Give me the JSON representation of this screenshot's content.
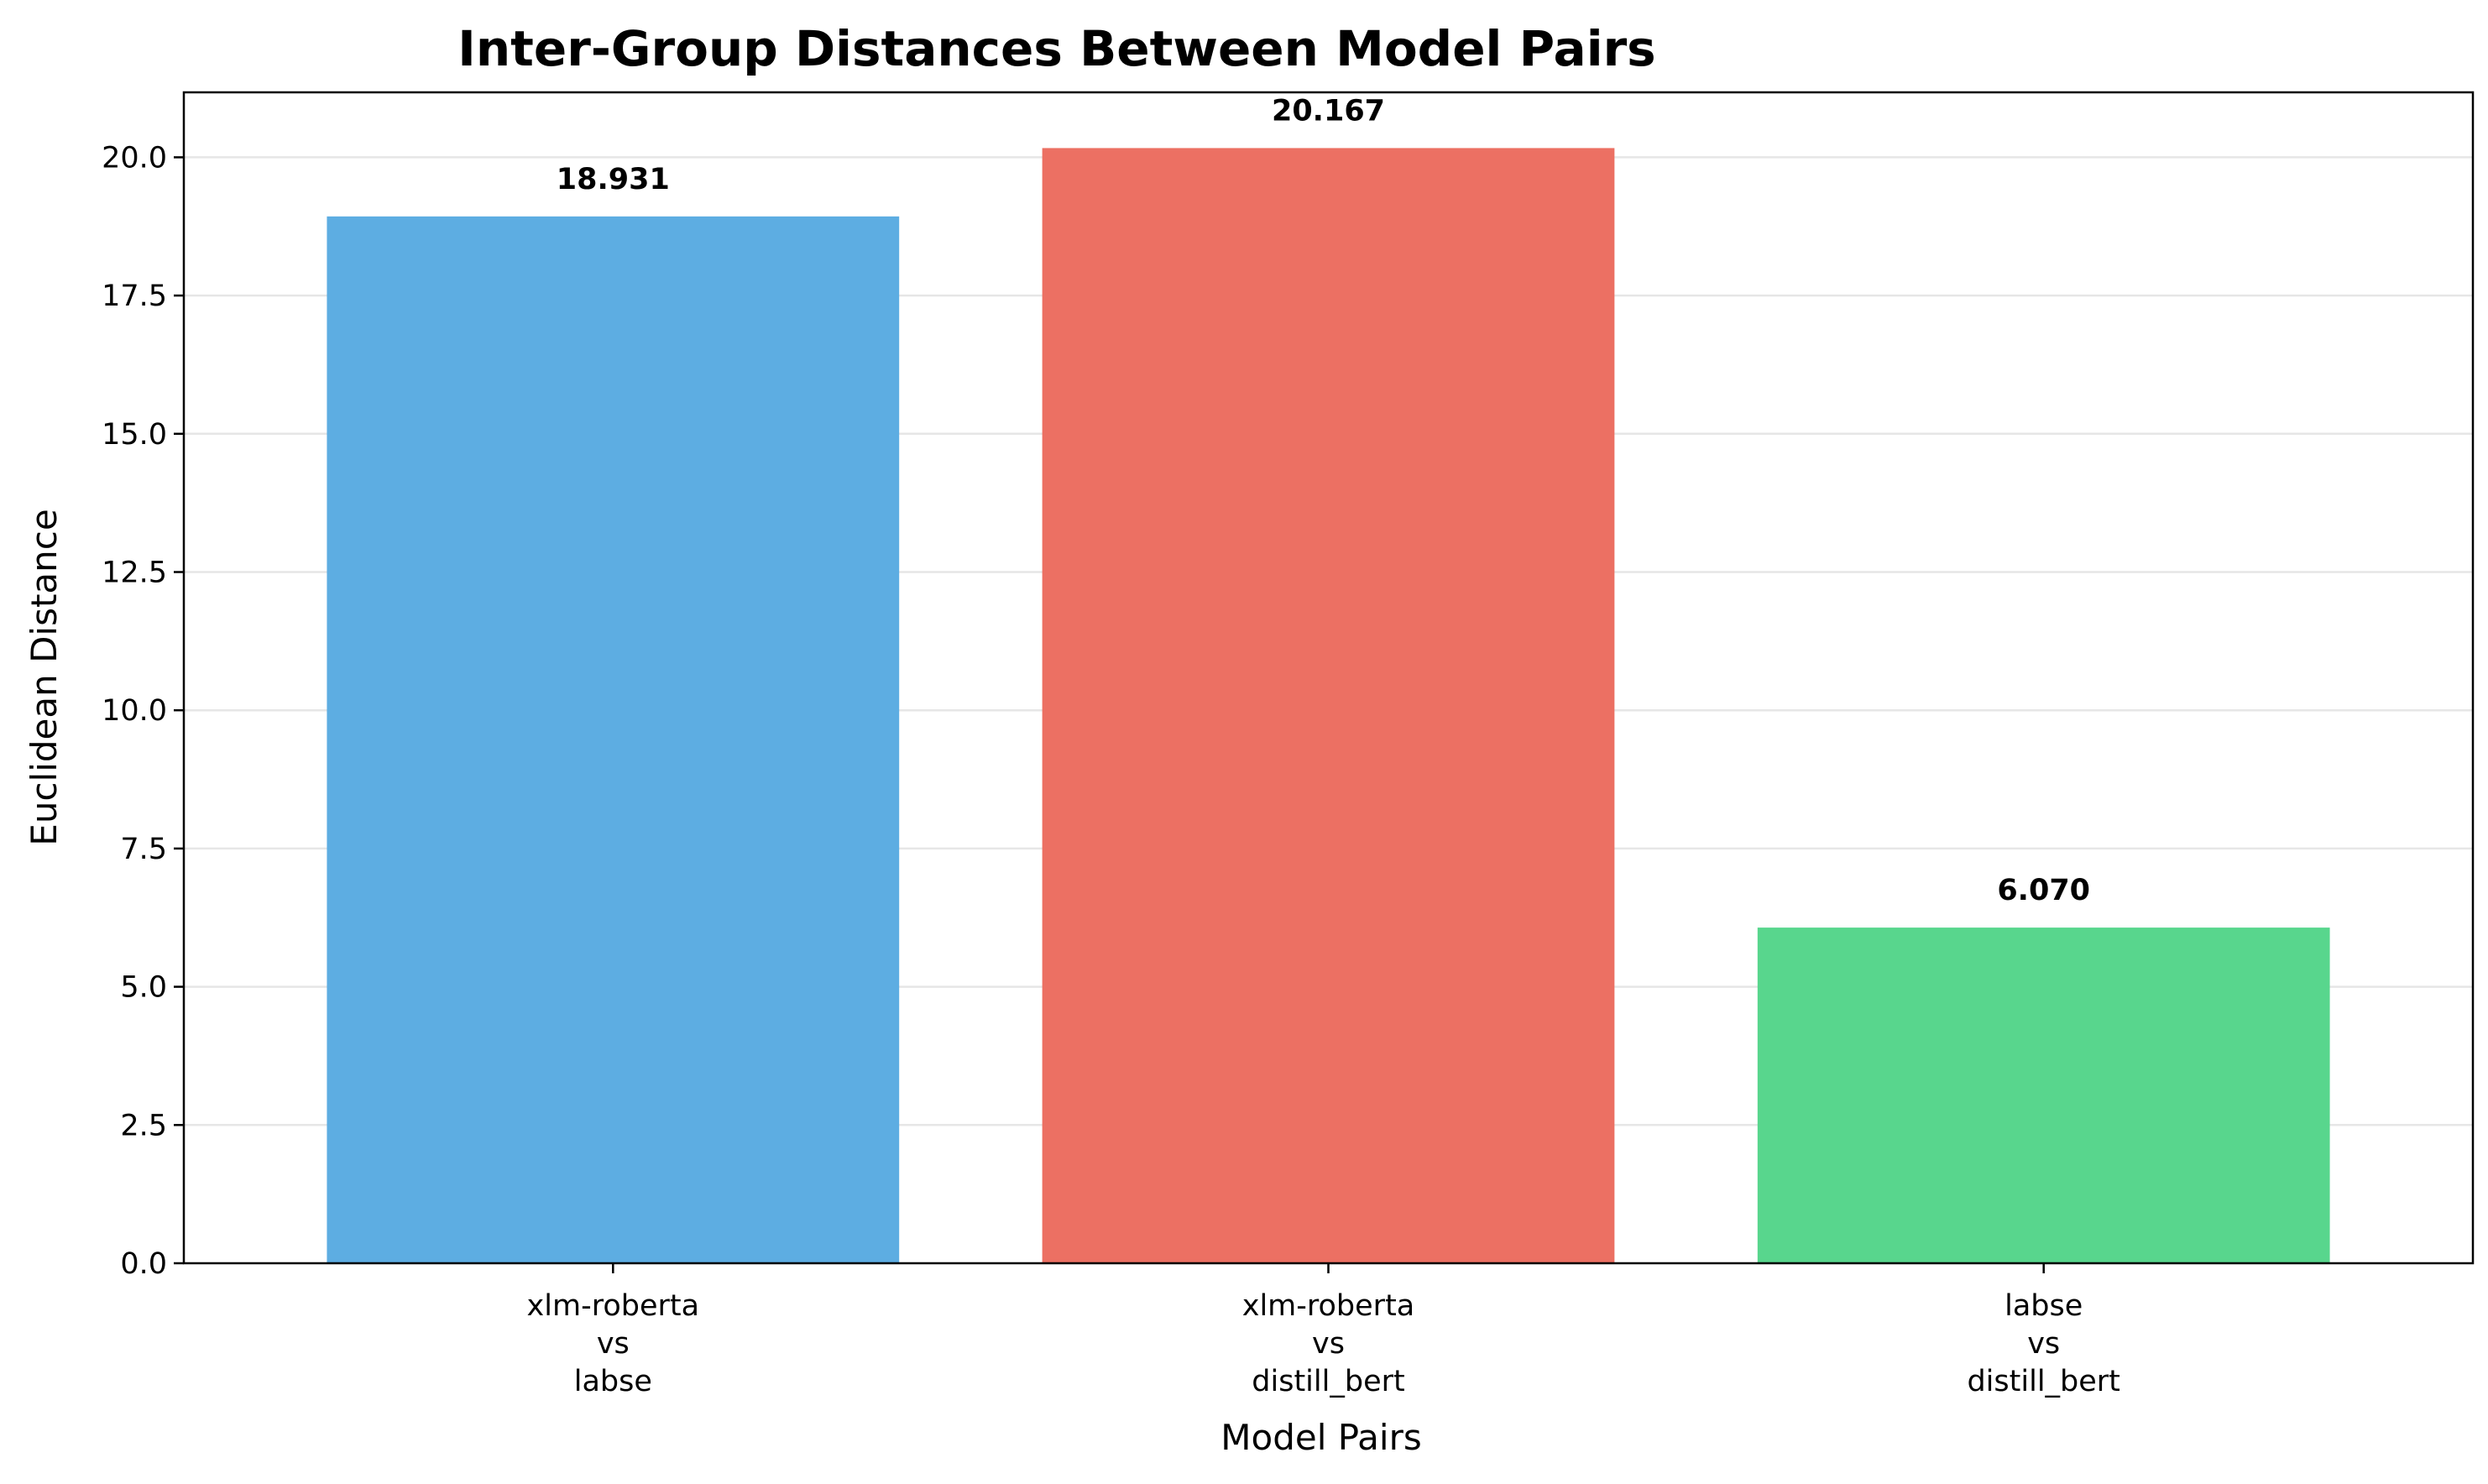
{
  "chart_data": {
    "type": "bar",
    "title": "Inter-Group Distances Between Model Pairs",
    "xlabel": "Model Pairs",
    "ylabel": "Euclidean Distance",
    "categories": [
      [
        "xlm-roberta",
        "vs",
        "labse"
      ],
      [
        "xlm-roberta",
        "vs",
        "distill_bert"
      ],
      [
        "labse",
        "vs",
        "distill_bert"
      ]
    ],
    "values": [
      18.931,
      20.167,
      6.07
    ],
    "data_labels": [
      "18.931",
      "20.167",
      "6.070"
    ],
    "colors": [
      "#5dade2",
      "#ec7063",
      "#58d68d"
    ],
    "ylim": [
      0,
      21.175
    ],
    "yticks": [
      0,
      2.5,
      5,
      7.5,
      10,
      12.5,
      15,
      17.5,
      20
    ],
    "ytick_labels": [
      "0.0",
      "2.5",
      "5.0",
      "7.5",
      "10.0",
      "12.5",
      "15.0",
      "17.5",
      "20.0"
    ],
    "grid": "y-axis only",
    "legend": "none"
  }
}
